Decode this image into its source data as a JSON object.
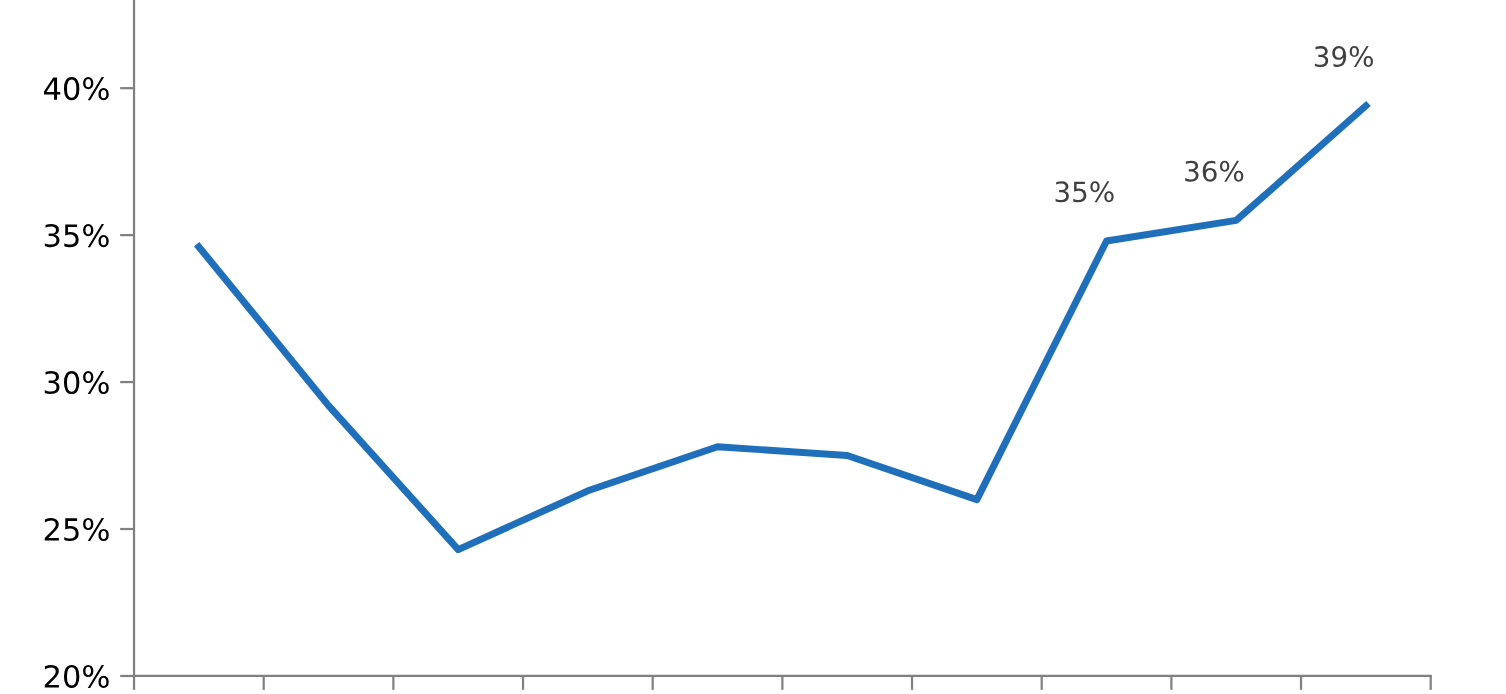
{
  "chart_data": {
    "type": "line",
    "categories": [
      null,
      null,
      null,
      null,
      null,
      null,
      null,
      null,
      null,
      null
    ],
    "series": [
      {
        "color": "#1f6fba",
        "values": [
          34.6,
          29.2,
          24.3,
          26.3,
          27.8,
          27.5,
          26.0,
          34.8,
          35.5,
          39.4
        ],
        "value_labels": [
          null,
          null,
          null,
          null,
          null,
          null,
          null,
          "35%",
          "36%",
          "39%"
        ]
      }
    ],
    "ylim": [
      20,
      43
    ],
    "yticks": [
      {
        "value": 20,
        "label": "20%"
      },
      {
        "value": 25,
        "label": "25%"
      },
      {
        "value": 30,
        "label": "30%"
      },
      {
        "value": 35,
        "label": "35%"
      },
      {
        "value": 40,
        "label": "40%"
      }
    ],
    "grid": false,
    "legend": false,
    "marker": "none",
    "line_style": "solid"
  }
}
